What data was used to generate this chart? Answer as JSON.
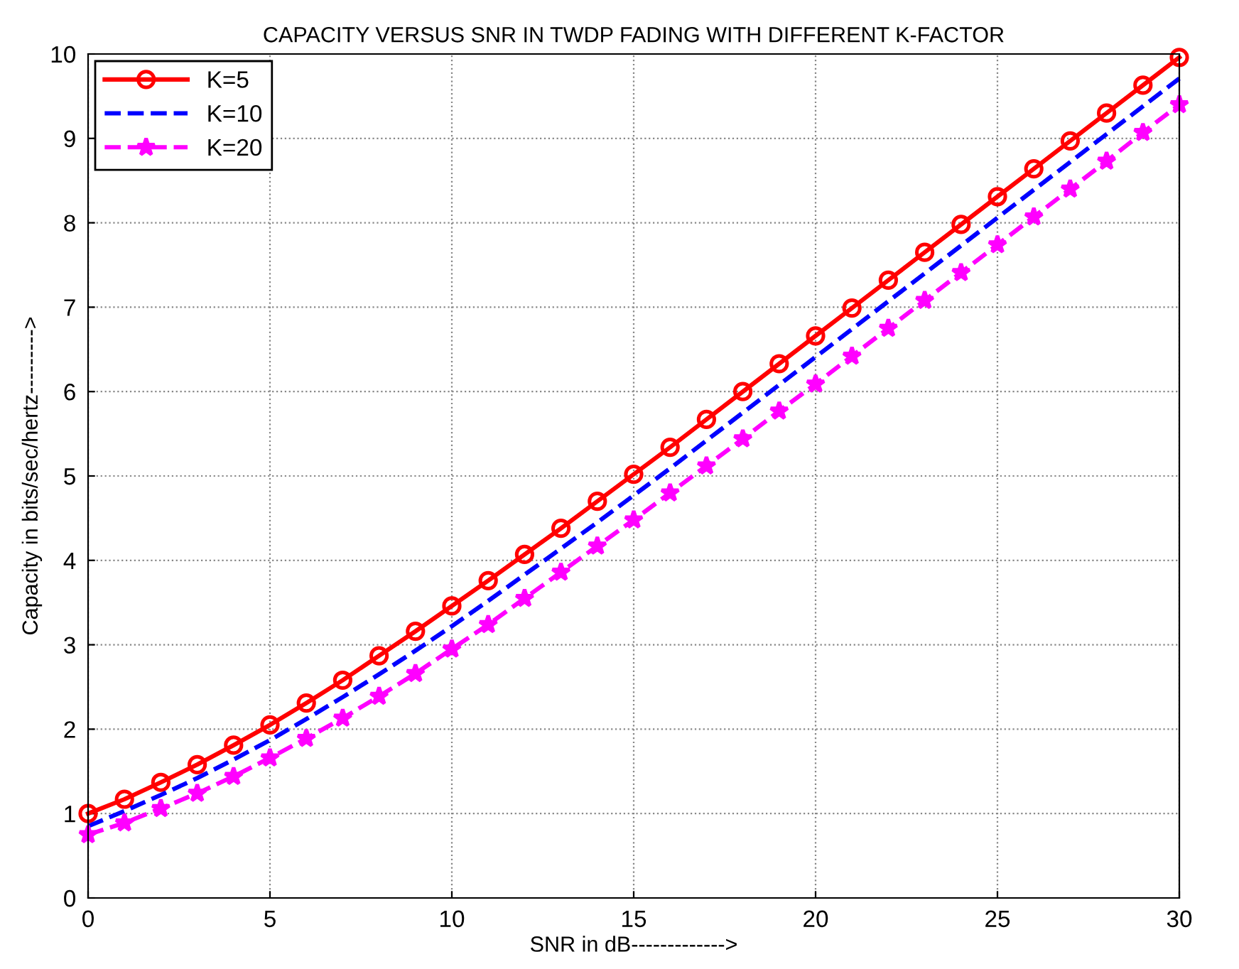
{
  "chart_data": {
    "type": "line",
    "title": "CAPACITY VERSUS SNR IN TWDP FADING WITH DIFFERENT K-FACTOR",
    "xlabel": "SNR in dB------------->",
    "ylabel": "Capacity in bits/sec/hertz--------->",
    "x": [
      0,
      1,
      2,
      3,
      4,
      5,
      6,
      7,
      8,
      9,
      10,
      11,
      12,
      13,
      14,
      15,
      16,
      17,
      18,
      19,
      20,
      21,
      22,
      23,
      24,
      25,
      26,
      27,
      28,
      29,
      30
    ],
    "series": [
      {
        "name": "K=5",
        "color": "#ff0000",
        "marker": "circle",
        "line_style": "solid",
        "values": [
          1.0,
          1.17,
          1.37,
          1.58,
          1.81,
          2.05,
          2.31,
          2.58,
          2.87,
          3.16,
          3.46,
          3.76,
          4.07,
          4.38,
          4.7,
          5.02,
          5.34,
          5.67,
          6.0,
          6.33,
          6.66,
          6.99,
          7.32,
          7.65,
          7.98,
          8.31,
          8.64,
          8.97,
          9.3,
          9.63,
          9.96
        ]
      },
      {
        "name": "K=10",
        "color": "#0000ff",
        "marker": "none",
        "line_style": "dashed",
        "values": [
          0.85,
          1.03,
          1.22,
          1.42,
          1.64,
          1.87,
          2.12,
          2.38,
          2.65,
          2.93,
          3.22,
          3.52,
          3.83,
          4.14,
          4.45,
          4.77,
          5.09,
          5.42,
          5.75,
          6.08,
          6.41,
          6.74,
          7.07,
          7.4,
          7.73,
          8.06,
          8.39,
          8.72,
          9.05,
          9.38,
          9.71
        ]
      },
      {
        "name": "K=20",
        "color": "#ff00ff",
        "marker": "star",
        "line_style": "dashed",
        "values": [
          0.75,
          0.89,
          1.06,
          1.24,
          1.44,
          1.66,
          1.89,
          2.13,
          2.39,
          2.66,
          2.95,
          3.24,
          3.55,
          3.86,
          4.17,
          4.48,
          4.8,
          5.12,
          5.44,
          5.77,
          6.09,
          6.42,
          6.75,
          7.08,
          7.41,
          7.74,
          8.07,
          8.4,
          8.73,
          9.07,
          9.4
        ]
      }
    ],
    "xlim": [
      0,
      30
    ],
    "ylim": [
      0,
      10
    ],
    "xticks": [
      0,
      5,
      10,
      15,
      20,
      25,
      30
    ],
    "yticks": [
      0,
      1,
      2,
      3,
      4,
      5,
      6,
      7,
      8,
      9,
      10
    ],
    "grid": true,
    "legend": "top left"
  }
}
